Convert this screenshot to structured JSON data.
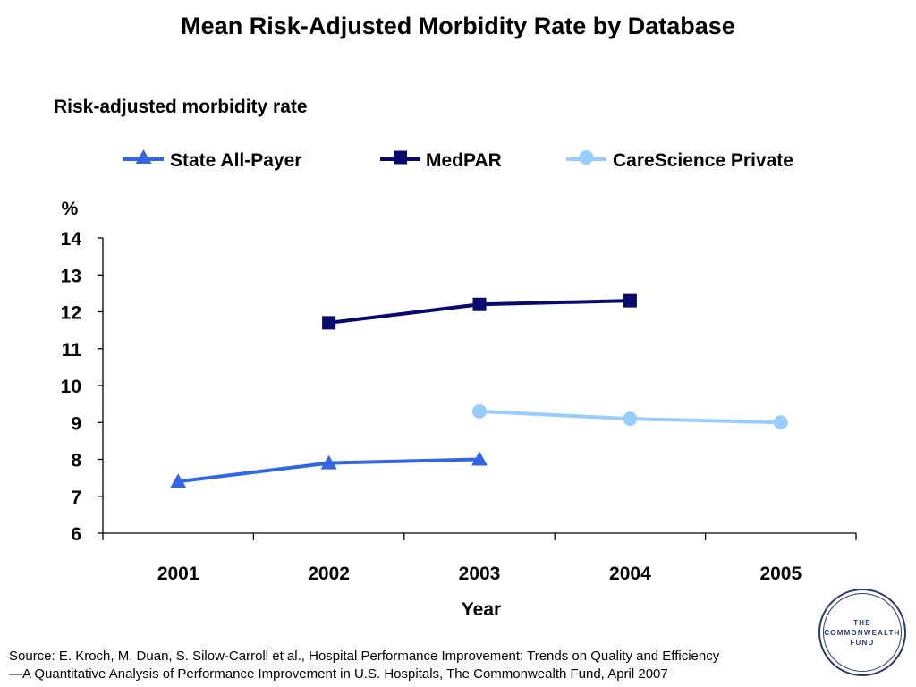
{
  "chart_data": {
    "type": "line",
    "title": "Mean Risk-Adjusted Morbidity Rate by Database",
    "subtitle": "Risk-adjusted morbidity rate",
    "ylabel": "%",
    "xlabel": "Year",
    "categories": [
      "2001",
      "2002",
      "2003",
      "2004",
      "2005"
    ],
    "ylim": [
      6,
      14
    ],
    "yticks": [
      6,
      7,
      8,
      9,
      10,
      11,
      12,
      13,
      14
    ],
    "legend_position": "top",
    "series": [
      {
        "name": "State All-Payer",
        "values": [
          7.4,
          7.9,
          8.0,
          null,
          null
        ],
        "color": "#3366e0",
        "marker": "triangle"
      },
      {
        "name": "MedPAR",
        "values": [
          null,
          11.7,
          12.2,
          12.3,
          null
        ],
        "color": "#0a0a6e",
        "marker": "square"
      },
      {
        "name": "CareScience Private",
        "values": [
          null,
          null,
          9.3,
          9.1,
          9.0
        ],
        "color": "#99ccff",
        "marker": "circle"
      }
    ]
  },
  "source": {
    "line1": "Source: E. Kroch, M. Duan, S. Silow-Carroll et al., Hospital Performance Improvement: Trends on Quality and Efficiency",
    "line2": "—A Quantitative Analysis of Performance Improvement in U.S. Hospitals, The Commonwealth Fund, April 2007"
  },
  "logo": {
    "line1": "THE",
    "line2": "COMMONWEALTH",
    "line3": "FUND"
  }
}
